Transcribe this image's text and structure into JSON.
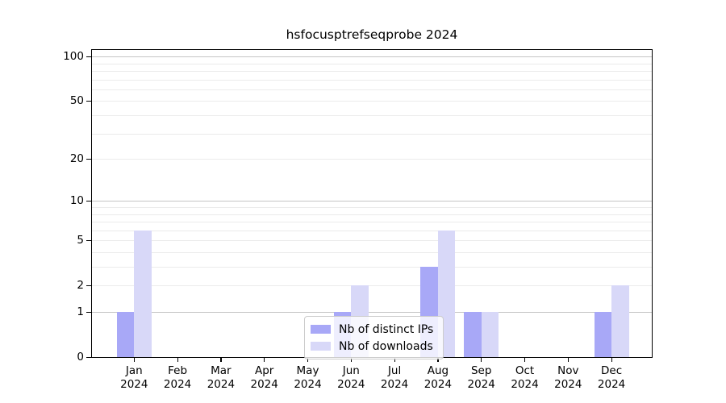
{
  "chart_data": {
    "type": "bar",
    "title": "hsfocusptrefseqprobe 2024",
    "categories": [
      "Jan",
      "Feb",
      "Mar",
      "Apr",
      "May",
      "Jun",
      "Jul",
      "Aug",
      "Sep",
      "Oct",
      "Nov",
      "Dec"
    ],
    "year": "2024",
    "series": [
      {
        "name": "Nb of distinct IPs",
        "color": "#a8a8f7",
        "values": [
          1,
          0,
          0,
          0,
          0,
          1,
          0,
          3,
          1,
          0,
          0,
          1
        ]
      },
      {
        "name": "Nb of downloads",
        "color": "#d8d8f8",
        "values": [
          6,
          0,
          0,
          0,
          0,
          2,
          0,
          6,
          1,
          0,
          0,
          2
        ]
      }
    ],
    "y_ticks": [
      0,
      1,
      2,
      5,
      10,
      20,
      50,
      100
    ],
    "gridlines": {
      "major": [
        1,
        10,
        100
      ],
      "minor": [
        2,
        3,
        4,
        5,
        6,
        7,
        8,
        9,
        20,
        30,
        40,
        50,
        60,
        70,
        80,
        90
      ]
    },
    "scale": "log1p",
    "ylim": [
      0,
      110
    ],
    "grid": true,
    "legend_position": "lower center",
    "xlabel": "",
    "ylabel": ""
  },
  "colors": {
    "bar_distinct_ips": "#a8a8f7",
    "bar_downloads": "#d8d8f8",
    "grid_major": "#c4c4c4",
    "grid_minor": "#ebebeb",
    "spine": "#000000",
    "legend_border": "#cccccc",
    "text": "#000000"
  }
}
